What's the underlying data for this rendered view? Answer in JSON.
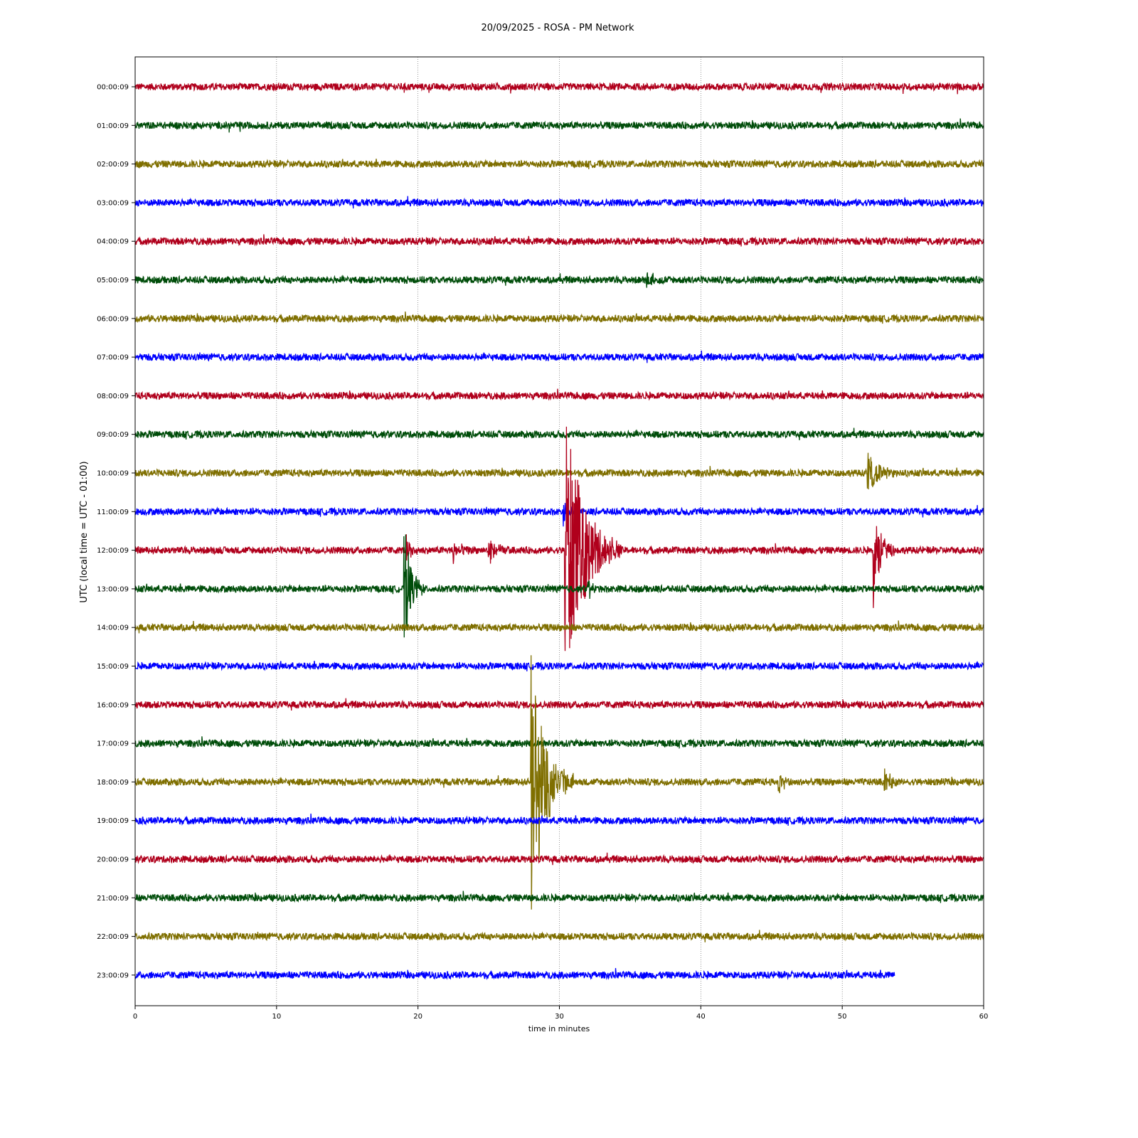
{
  "chart_data": {
    "type": "line",
    "title": "20/09/2025 - ROSA - PM Network",
    "xlabel": "time in minutes",
    "ylabel": "UTC (local time = UTC - 01:00)",
    "xlim": [
      0,
      60
    ],
    "x_ticks": [
      0,
      10,
      20,
      30,
      40,
      50,
      60
    ],
    "vertical_grid": true,
    "trace_colors": [
      "#b0001c",
      "#004d0a",
      "#7f6f00",
      "#0000ff"
    ],
    "series": [
      {
        "name": "00:00:09",
        "end_minute": 60,
        "events": []
      },
      {
        "name": "01:00:09",
        "end_minute": 60,
        "events": []
      },
      {
        "name": "02:00:09",
        "end_minute": 60,
        "events": []
      },
      {
        "name": "03:00:09",
        "end_minute": 60,
        "events": []
      },
      {
        "name": "04:00:09",
        "end_minute": 60,
        "events": []
      },
      {
        "name": "05:00:09",
        "end_minute": 60,
        "events": [
          {
            "t": 36.2,
            "amp": 0.25,
            "dur": 1.5
          }
        ]
      },
      {
        "name": "06:00:09",
        "end_minute": 60,
        "events": []
      },
      {
        "name": "07:00:09",
        "end_minute": 60,
        "events": []
      },
      {
        "name": "08:00:09",
        "end_minute": 60,
        "events": []
      },
      {
        "name": "09:00:09",
        "end_minute": 60,
        "events": []
      },
      {
        "name": "10:00:09",
        "end_minute": 60,
        "events": [
          {
            "t": 51.8,
            "amp": 0.55,
            "dur": 2.5
          }
        ]
      },
      {
        "name": "11:00:09",
        "end_minute": 60,
        "events": [
          {
            "t": 30.3,
            "amp": 0.35,
            "dur": 1.5
          }
        ]
      },
      {
        "name": "12:00:09",
        "end_minute": 60,
        "events": [
          {
            "t": 30.4,
            "amp": 3.7,
            "dur": 4.0
          },
          {
            "t": 52.2,
            "amp": 1.45,
            "dur": 1.5
          },
          {
            "t": 19.2,
            "amp": 0.35,
            "dur": 1.0
          },
          {
            "t": 22.5,
            "amp": 0.4,
            "dur": 1.5
          },
          {
            "t": 25.0,
            "amp": 0.4,
            "dur": 1.5
          }
        ]
      },
      {
        "name": "13:00:09",
        "end_minute": 60,
        "events": [
          {
            "t": 19.0,
            "amp": 1.9,
            "dur": 1.5
          },
          {
            "t": 32.0,
            "amp": 0.3,
            "dur": 1.0
          }
        ]
      },
      {
        "name": "14:00:09",
        "end_minute": 60,
        "events": []
      },
      {
        "name": "15:00:09",
        "end_minute": 60,
        "events": []
      },
      {
        "name": "16:00:09",
        "end_minute": 60,
        "events": []
      },
      {
        "name": "17:00:09",
        "end_minute": 60,
        "events": []
      },
      {
        "name": "18:00:09",
        "end_minute": 60,
        "events": [
          {
            "t": 28.0,
            "amp": 3.6,
            "dur": 3.0
          },
          {
            "t": 45.5,
            "amp": 0.3,
            "dur": 1.5
          },
          {
            "t": 53.0,
            "amp": 0.3,
            "dur": 1.5
          }
        ]
      },
      {
        "name": "19:00:09",
        "end_minute": 60,
        "events": []
      },
      {
        "name": "20:00:09",
        "end_minute": 60,
        "events": []
      },
      {
        "name": "21:00:09",
        "end_minute": 60,
        "events": []
      },
      {
        "name": "22:00:09",
        "end_minute": 60,
        "events": []
      },
      {
        "name": "23:00:09",
        "end_minute": 53.7,
        "events": []
      }
    ]
  }
}
